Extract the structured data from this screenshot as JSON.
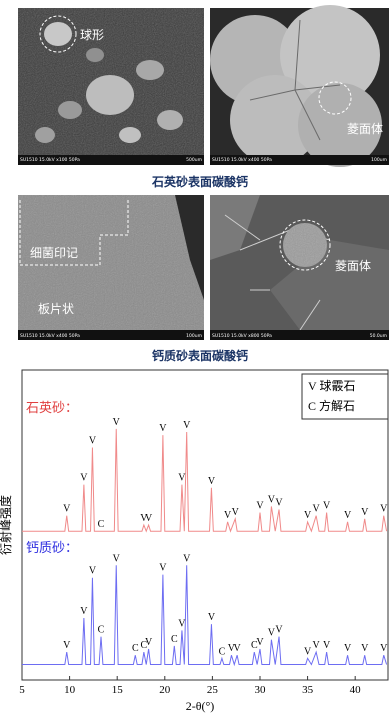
{
  "images": {
    "panels": [
      {
        "label": "球形",
        "info": "SU1510 15.0kV x100 50Pa",
        "scale": "500um"
      },
      {
        "label": "菱面体",
        "info": "SU1510 15.0kV x400 50Pa",
        "scale": "100um"
      },
      {
        "label": "细菌印记",
        "label2": "板片状",
        "info": "SU1510 15.0kV x400 50Pa",
        "scale": "100um"
      },
      {
        "label": "菱面体",
        "info": "SU1510 15.0kV x800 50Pa",
        "scale": "50.0um"
      }
    ],
    "captions": [
      "石英砂表面碳酸钙",
      "钙质砂表面碳酸钙"
    ]
  },
  "chart_data": {
    "type": "line",
    "xlabel": "2-θ(°)",
    "ylabel": "衍射峰强度",
    "xlim": [
      5,
      43.5
    ],
    "ylim": [
      0,
      100
    ],
    "xticks": [
      5,
      10,
      15,
      20,
      25,
      30,
      35,
      40
    ],
    "legend": [
      "V 球霰石",
      "C 方解石"
    ],
    "legend_position": "upper right",
    "series": [
      {
        "name": "石英砂：",
        "color": "#f08a8a",
        "x": [
          5,
          9.5,
          9.7,
          9.9,
          11.3,
          11.5,
          11.7,
          12.2,
          12.4,
          12.6,
          14.7,
          14.9,
          15.1,
          17.6,
          17.8,
          18.05,
          18.3,
          18.5,
          19.6,
          19.8,
          20.0,
          21.6,
          21.8,
          22.05,
          22.3,
          22.5,
          24.7,
          24.9,
          25.1,
          26.4,
          26.6,
          26.9,
          27.4,
          27.6,
          29.8,
          30.0,
          30.2,
          31.0,
          31.2,
          31.6,
          32.0,
          32.2,
          34.8,
          35.0,
          35.4,
          35.9,
          36.2,
          36.8,
          37.0,
          37.2,
          39.0,
          39.2,
          39.4,
          40.8,
          41.0,
          41.2,
          42.8,
          43.0,
          43.3
        ],
        "values": [
          48,
          48,
          53,
          48,
          48,
          63,
          48,
          48,
          75,
          48,
          48,
          81,
          48,
          48,
          50,
          48,
          50,
          48,
          48,
          79,
          48,
          48,
          63,
          48,
          80,
          48,
          48,
          62,
          48,
          48,
          51,
          48,
          52,
          48,
          48,
          54,
          48,
          48,
          56,
          48,
          55,
          48,
          48,
          51,
          48,
          53,
          48,
          48,
          54,
          48,
          48,
          51,
          48,
          48,
          52,
          48,
          48,
          53,
          48
        ],
        "annotations": [
          {
            "text": "V",
            "x": 9.7,
            "y": 53
          },
          {
            "text": "V",
            "x": 11.5,
            "y": 63
          },
          {
            "text": "V",
            "x": 12.4,
            "y": 75
          },
          {
            "text": "C",
            "x": 13.3,
            "y": 48
          },
          {
            "text": "V",
            "x": 14.9,
            "y": 81
          },
          {
            "text": "V",
            "x": 17.8,
            "y": 50
          },
          {
            "text": "V",
            "x": 18.3,
            "y": 50
          },
          {
            "text": "V",
            "x": 19.8,
            "y": 79
          },
          {
            "text": "V",
            "x": 21.8,
            "y": 63
          },
          {
            "text": "V",
            "x": 22.3,
            "y": 80
          },
          {
            "text": "V",
            "x": 24.9,
            "y": 62
          },
          {
            "text": "V",
            "x": 26.6,
            "y": 51
          },
          {
            "text": "V",
            "x": 27.4,
            "y": 52
          },
          {
            "text": "V",
            "x": 30.0,
            "y": 54
          },
          {
            "text": "V",
            "x": 31.2,
            "y": 56
          },
          {
            "text": "V",
            "x": 32.0,
            "y": 55
          },
          {
            "text": "V",
            "x": 35.0,
            "y": 51
          },
          {
            "text": "V",
            "x": 35.9,
            "y": 53
          },
          {
            "text": "V",
            "x": 37.0,
            "y": 54
          },
          {
            "text": "V",
            "x": 39.2,
            "y": 51
          },
          {
            "text": "V",
            "x": 41.0,
            "y": 52
          },
          {
            "text": "V",
            "x": 43.0,
            "y": 53
          }
        ]
      },
      {
        "name": "钙质砂：",
        "color": "#6d6df2",
        "x": [
          5,
          9.5,
          9.7,
          9.9,
          11.3,
          11.5,
          11.7,
          12.2,
          12.4,
          12.6,
          13.1,
          13.3,
          13.5,
          14.7,
          14.9,
          15.1,
          16.7,
          16.9,
          17.1,
          17.6,
          17.8,
          18.05,
          18.3,
          18.5,
          19.6,
          19.8,
          20.0,
          20.8,
          21.0,
          21.2,
          21.6,
          21.8,
          22.05,
          22.3,
          22.5,
          24.7,
          24.9,
          25.1,
          25.8,
          26.0,
          26.2,
          26.8,
          27.0,
          27.3,
          27.6,
          27.8,
          29.2,
          29.4,
          29.7,
          30.0,
          30.2,
          31.0,
          31.2,
          31.6,
          32.0,
          32.2,
          34.8,
          35.0,
          35.4,
          35.9,
          36.2,
          36.8,
          37.0,
          37.2,
          39.0,
          39.2,
          39.4,
          40.8,
          41.0,
          41.2,
          42.8,
          43.0,
          43.3
        ],
        "values": [
          5,
          5,
          9,
          5,
          5,
          20,
          5,
          5,
          33,
          5,
          5,
          14,
          5,
          5,
          37,
          5,
          5,
          8,
          5,
          5,
          9,
          5,
          10,
          5,
          5,
          34,
          5,
          5,
          11,
          5,
          5,
          16,
          5,
          37,
          5,
          5,
          18,
          5,
          5,
          7,
          5,
          5,
          8,
          5,
          8,
          5,
          5,
          9,
          5,
          10,
          5,
          5,
          13,
          5,
          14,
          5,
          5,
          7,
          5,
          9,
          5,
          5,
          9,
          5,
          5,
          8,
          5,
          5,
          8,
          5,
          5,
          8,
          5
        ],
        "annotations": [
          {
            "text": "V",
            "x": 9.7,
            "y": 9
          },
          {
            "text": "V",
            "x": 11.5,
            "y": 20
          },
          {
            "text": "V",
            "x": 12.4,
            "y": 33
          },
          {
            "text": "C",
            "x": 13.3,
            "y": 14
          },
          {
            "text": "V",
            "x": 14.9,
            "y": 37
          },
          {
            "text": "C",
            "x": 16.9,
            "y": 8
          },
          {
            "text": "C",
            "x": 17.8,
            "y": 9
          },
          {
            "text": "V",
            "x": 18.3,
            "y": 10
          },
          {
            "text": "V",
            "x": 19.8,
            "y": 34
          },
          {
            "text": "C",
            "x": 21.0,
            "y": 11
          },
          {
            "text": "V",
            "x": 21.8,
            "y": 16
          },
          {
            "text": "V",
            "x": 22.3,
            "y": 37
          },
          {
            "text": "V",
            "x": 24.9,
            "y": 18
          },
          {
            "text": "C",
            "x": 26.0,
            "y": 7
          },
          {
            "text": "V",
            "x": 27.0,
            "y": 8
          },
          {
            "text": "V",
            "x": 27.6,
            "y": 8
          },
          {
            "text": "C",
            "x": 29.4,
            "y": 9
          },
          {
            "text": "V",
            "x": 30.0,
            "y": 10
          },
          {
            "text": "V",
            "x": 31.2,
            "y": 13
          },
          {
            "text": "V",
            "x": 32.0,
            "y": 14
          },
          {
            "text": "V",
            "x": 35.0,
            "y": 7
          },
          {
            "text": "V",
            "x": 35.9,
            "y": 9
          },
          {
            "text": "V",
            "x": 37.0,
            "y": 9
          },
          {
            "text": "V",
            "x": 39.2,
            "y": 8
          },
          {
            "text": "V",
            "x": 41.0,
            "y": 8
          },
          {
            "text": "V",
            "x": 43.0,
            "y": 8
          }
        ]
      }
    ]
  }
}
